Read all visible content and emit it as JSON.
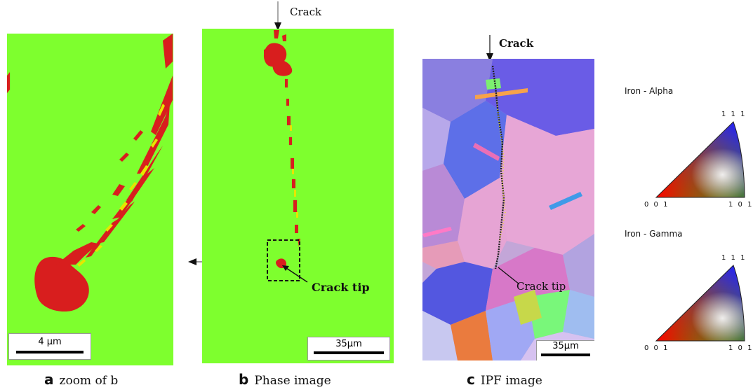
{
  "panels": {
    "a": {
      "letter": "a",
      "caption": "zoom of b",
      "scale_label": "4 µm"
    },
    "b": {
      "letter": "b",
      "caption": "Phase image",
      "scale_label": "35µm",
      "crack_label": "Crack",
      "crack_tip_label": "Crack tip"
    },
    "c": {
      "letter": "c",
      "caption": "IPF image",
      "scale_label": "35µm",
      "crack_label": "Crack",
      "crack_tip_label": "Crack tip"
    }
  },
  "legend": {
    "alpha": {
      "title": "Iron - Alpha",
      "corner_111": "1 1 1",
      "corner_001": "0 0 1",
      "corner_101": "1 0 1"
    },
    "gamma": {
      "title": "Iron - Gamma",
      "corner_111": "1 1 1",
      "corner_001": "0 0 1",
      "corner_101": "1 0 1"
    }
  },
  "colors": {
    "phase_background": "#7eff2e",
    "phase_red": "#d81e1e",
    "phase_yellow": "#e6e600"
  }
}
